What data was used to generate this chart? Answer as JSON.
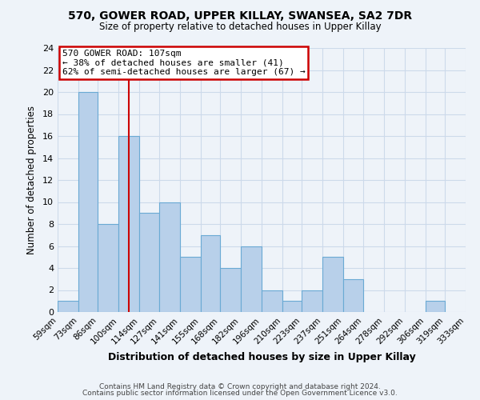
{
  "title1": "570, GOWER ROAD, UPPER KILLAY, SWANSEA, SA2 7DR",
  "title2": "Size of property relative to detached houses in Upper Killay",
  "xlabel": "Distribution of detached houses by size in Upper Killay",
  "ylabel": "Number of detached properties",
  "bin_edges": [
    59,
    73,
    86,
    100,
    114,
    127,
    141,
    155,
    168,
    182,
    196,
    210,
    223,
    237,
    251,
    264,
    278,
    292,
    306,
    319,
    333
  ],
  "bin_labels": [
    "59sqm",
    "73sqm",
    "86sqm",
    "100sqm",
    "114sqm",
    "127sqm",
    "141sqm",
    "155sqm",
    "168sqm",
    "182sqm",
    "196sqm",
    "210sqm",
    "223sqm",
    "237sqm",
    "251sqm",
    "264sqm",
    "278sqm",
    "292sqm",
    "306sqm",
    "319sqm",
    "333sqm"
  ],
  "counts": [
    1,
    20,
    8,
    16,
    9,
    10,
    5,
    7,
    4,
    6,
    2,
    1,
    2,
    5,
    3,
    0,
    0,
    0,
    1,
    0
  ],
  "bar_color": "#b8d0ea",
  "bar_edge_color": "#6aaad4",
  "grid_color": "#ccdaea",
  "vline_x": 107,
  "vline_color": "#cc0000",
  "annotation_box_color": "#cc0000",
  "annotation_title": "570 GOWER ROAD: 107sqm",
  "annotation_line1": "← 38% of detached houses are smaller (41)",
  "annotation_line2": "62% of semi-detached houses are larger (67) →",
  "ylim": [
    0,
    24
  ],
  "yticks": [
    0,
    2,
    4,
    6,
    8,
    10,
    12,
    14,
    16,
    18,
    20,
    22,
    24
  ],
  "footer1": "Contains HM Land Registry data © Crown copyright and database right 2024.",
  "footer2": "Contains public sector information licensed under the Open Government Licence v3.0.",
  "bg_color": "#eef3f9",
  "plot_bg_color": "#eef3f9"
}
